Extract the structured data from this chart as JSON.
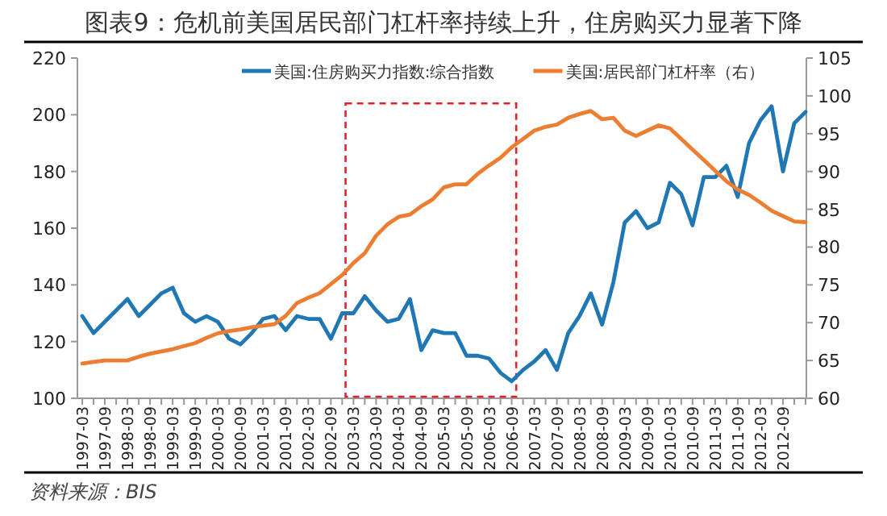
{
  "chart_data": {
    "type": "line",
    "title": "图表9：危机前美国居民部门杠杆率持续上升，住房购买力显著下降",
    "categories": [
      "1997-03",
      null,
      "1997-09",
      null,
      "1998-03",
      null,
      "1998-09",
      null,
      "1999-03",
      null,
      "1999-09",
      null,
      "2000-03",
      null,
      "2000-09",
      null,
      "2001-03",
      null,
      "2001-09",
      null,
      "2002-03",
      null,
      "2002-09",
      null,
      "2003-03",
      null,
      "2003-09",
      null,
      "2004-03",
      null,
      "2004-09",
      null,
      "2005-03",
      null,
      "2005-09",
      null,
      "2006-03",
      null,
      "2006-09",
      null,
      "2007-03",
      null,
      "2007-09",
      null,
      "2008-03",
      null,
      "2008-09",
      null,
      "2009-03",
      null,
      "2009-09",
      null,
      "2010-03",
      null,
      "2010-09",
      null,
      "2011-03",
      null,
      "2011-09",
      null,
      "2012-03",
      null,
      "2012-09",
      null,
      null
    ],
    "series": [
      {
        "name": "美国:住房购买力指数:综合指数",
        "color": "#1f77b4",
        "values": [
          129,
          123,
          127,
          131,
          135,
          129,
          133,
          137,
          139,
          130,
          127,
          129,
          127,
          121,
          119,
          123,
          128,
          129,
          124,
          129,
          128,
          128,
          121,
          130,
          130,
          136,
          131,
          127,
          128,
          135,
          117,
          124,
          123,
          123,
          115,
          115,
          114,
          109,
          106,
          110,
          113,
          117,
          110,
          123,
          129,
          137,
          126,
          141,
          162,
          166,
          160,
          162,
          176,
          172,
          161,
          178,
          178,
          182,
          171,
          190,
          198,
          203,
          180,
          197,
          201
        ]
      },
      {
        "name": "美国:居民部门杠杆率（右）",
        "color": "#ed7d31",
        "axis": "y2",
        "values": [
          64.6,
          64.8,
          65,
          65,
          65,
          65.5,
          65.9,
          66.2,
          66.5,
          66.9,
          67.3,
          68,
          68.6,
          68.9,
          69.1,
          69.4,
          69.6,
          69.8,
          70.9,
          72.6,
          73.3,
          73.9,
          75.1,
          76.3,
          77.9,
          79.2,
          81.5,
          83,
          84,
          84.3,
          85.4,
          86.3,
          87.9,
          88.3,
          88.3,
          89.7,
          90.8,
          91.8,
          93.2,
          94.3,
          95.4,
          95.9,
          96.2,
          97.1,
          97.6,
          98,
          96.9,
          97.1,
          95.4,
          94.7,
          95.4,
          96.1,
          95.7,
          94.3,
          92.9,
          91.5,
          90.1,
          88.7,
          87.6,
          86.9,
          85.9,
          84.8,
          84.1,
          83.4,
          83.3
        ]
      }
    ],
    "ylim": [
      100,
      220
    ],
    "yticks": [
      100,
      120,
      140,
      160,
      180,
      200,
      220
    ],
    "y2lim": [
      60,
      105
    ],
    "y2ticks": [
      60,
      65,
      70,
      75,
      80,
      85,
      90,
      95,
      100,
      105
    ],
    "legend": "top",
    "grid": false,
    "marker": "none",
    "line_style": "solid",
    "annotations": [
      "资料来源：BIS"
    ]
  }
}
